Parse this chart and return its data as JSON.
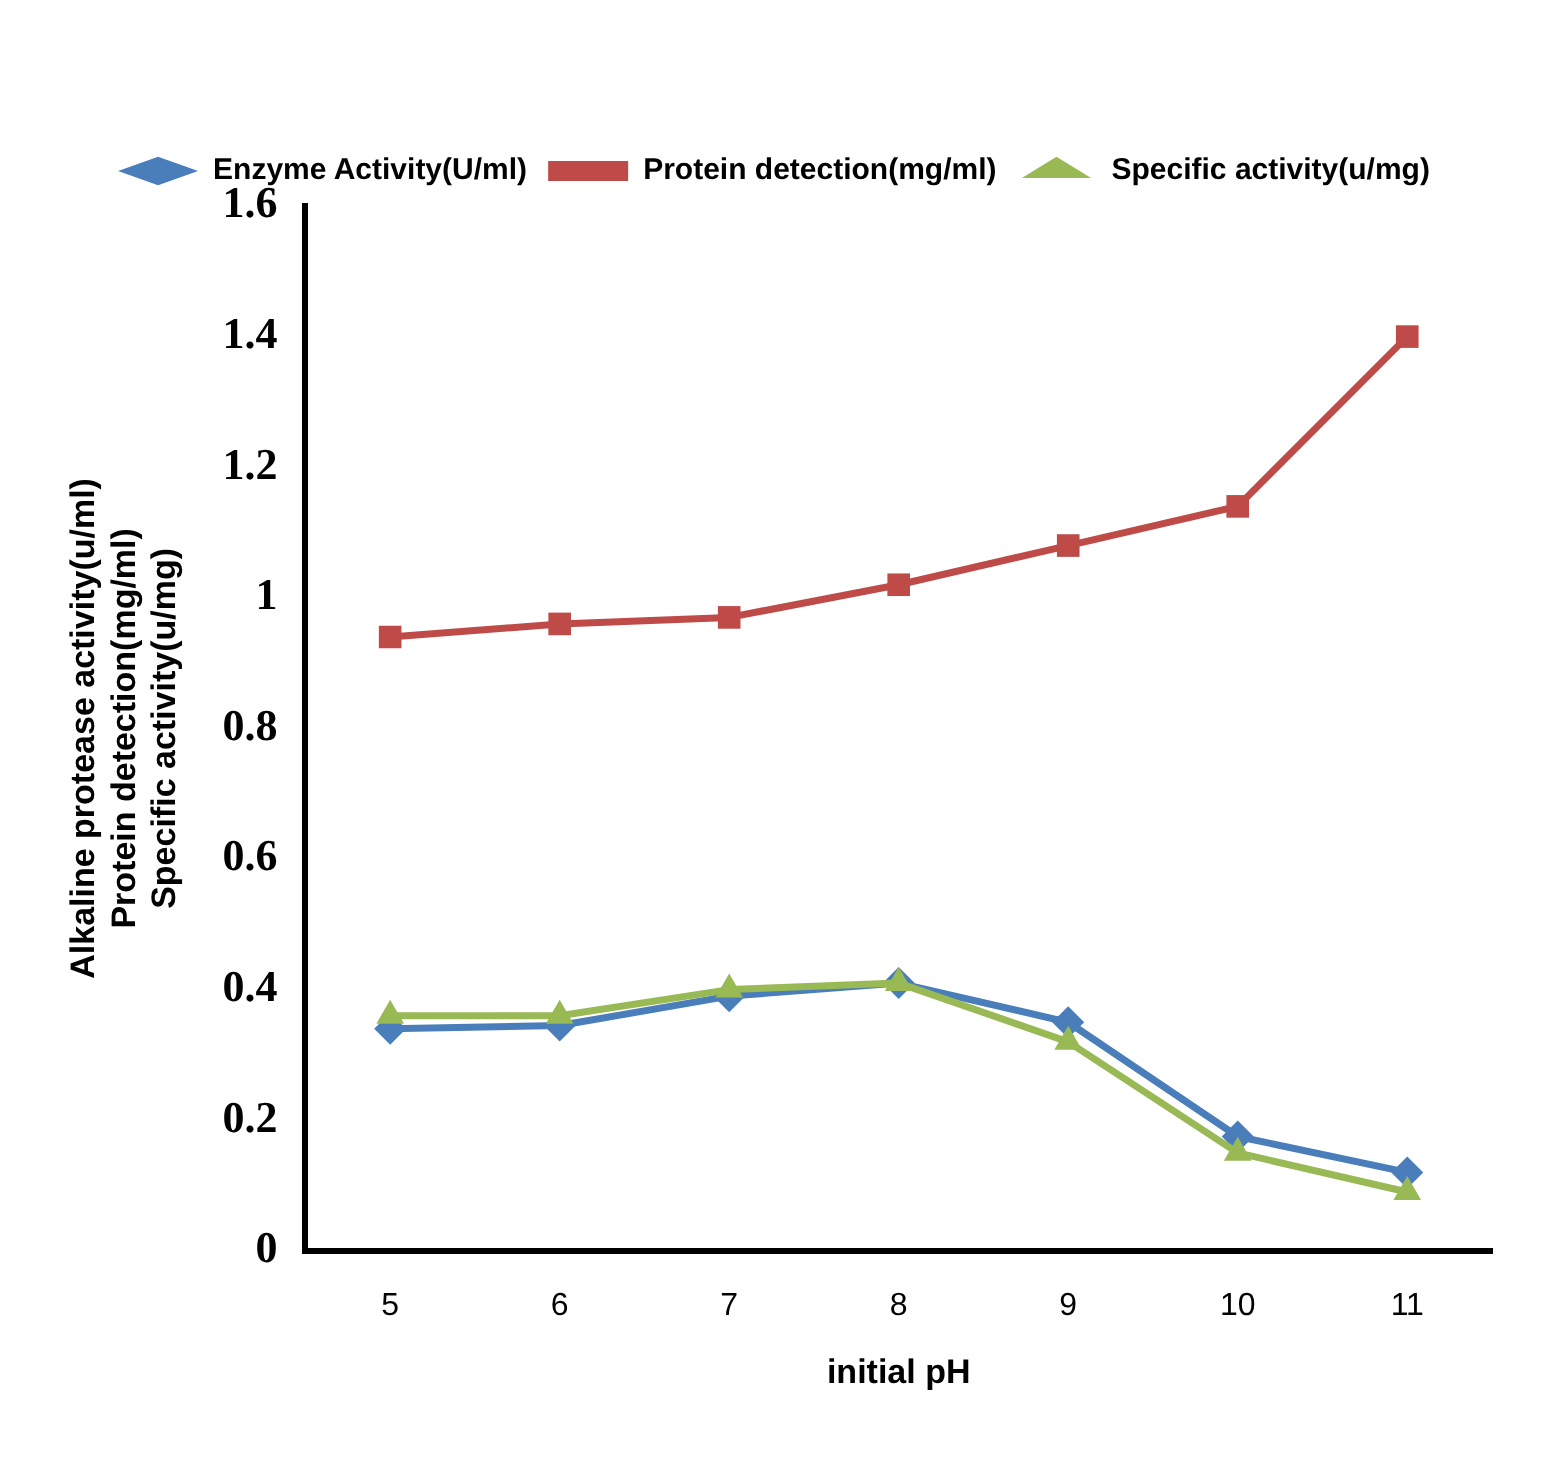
{
  "chart_data": {
    "type": "line",
    "xlabel": "initial pH",
    "ylabel": "Alkaline protease activity(u/ml)\nProtein detection(mg/ml)\nSpecific activity(u/mg)",
    "categories": [
      "5",
      "6",
      "7",
      "8",
      "9",
      "10",
      "11"
    ],
    "series": [
      {
        "name": "Enzyme Activity(U/ml)",
        "color": "#4a7ebb",
        "marker": "diamond",
        "values": [
          0.34,
          0.345,
          0.39,
          0.41,
          0.35,
          0.175,
          0.12
        ]
      },
      {
        "name": "Protein detection(mg/ml)",
        "color": "#be4b48",
        "marker": "square",
        "values": [
          0.94,
          0.96,
          0.97,
          1.02,
          1.08,
          1.14,
          1.4
        ]
      },
      {
        "name": "Specific activity(u/mg)",
        "color": "#98b954",
        "marker": "triangle",
        "values": [
          0.36,
          0.36,
          0.4,
          0.41,
          0.32,
          0.15,
          0.09
        ]
      }
    ],
    "ylim": [
      0,
      1.6
    ],
    "yticks": [
      0,
      0.2,
      0.4,
      0.6,
      0.8,
      1,
      1.2,
      1.4,
      1.6
    ],
    "grid": false,
    "legend": "top",
    "line_style": "solid"
  }
}
